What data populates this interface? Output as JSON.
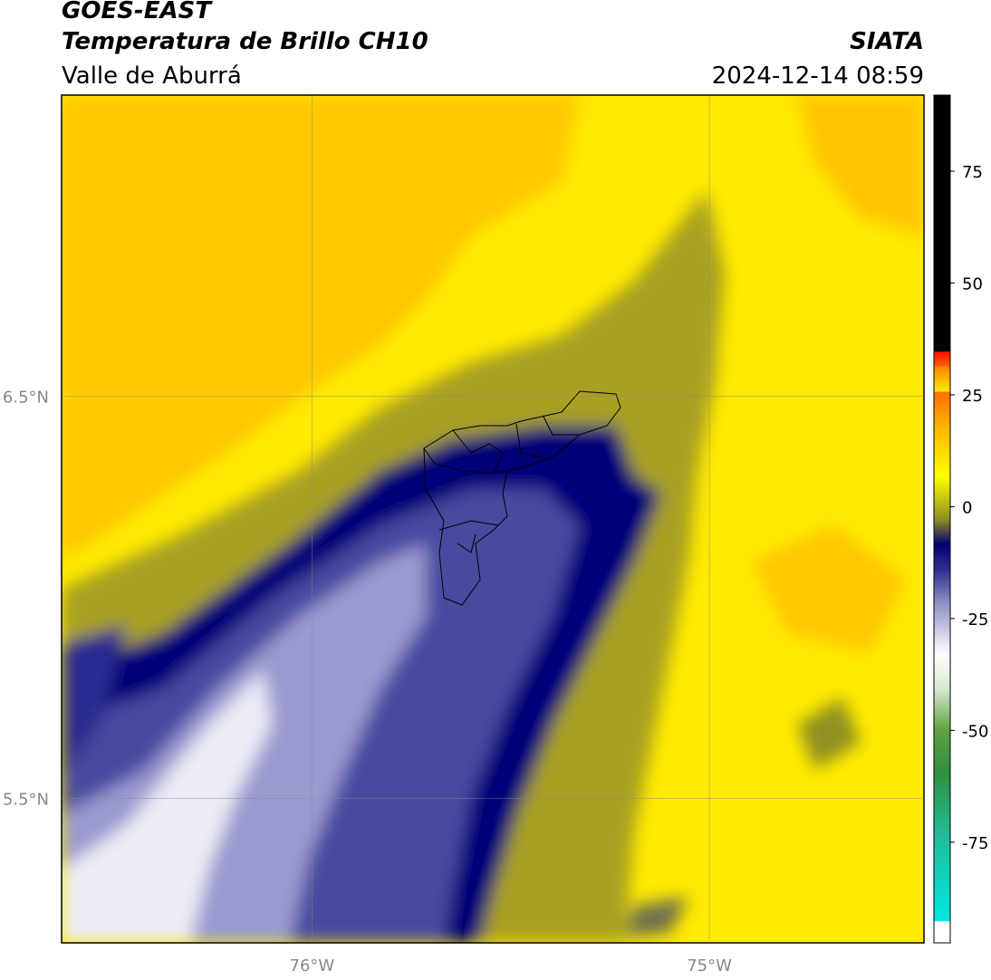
{
  "header": {
    "title": "GOES-EAST",
    "subtitle": "Temperatura de Brillo CH10",
    "region": "Valle de Aburrá",
    "source": "SIATA",
    "timestamp": "2024-12-14 08:59"
  },
  "map": {
    "xlim": [
      -76.63,
      -74.46
    ],
    "ylim": [
      5.14,
      7.25
    ],
    "xticks": [
      {
        "value": -76,
        "label": "76°W"
      },
      {
        "value": -75,
        "label": "75°W"
      }
    ],
    "yticks": [
      {
        "value": 5.5,
        "label": "5.5°N"
      },
      {
        "value": 6.5,
        "label": "6.5°N"
      }
    ],
    "grid": true
  },
  "colorbar": {
    "lim": [
      -97.5,
      92
    ],
    "ticks": [
      -75,
      -50,
      -25,
      0,
      25,
      50,
      75
    ]
  }
}
